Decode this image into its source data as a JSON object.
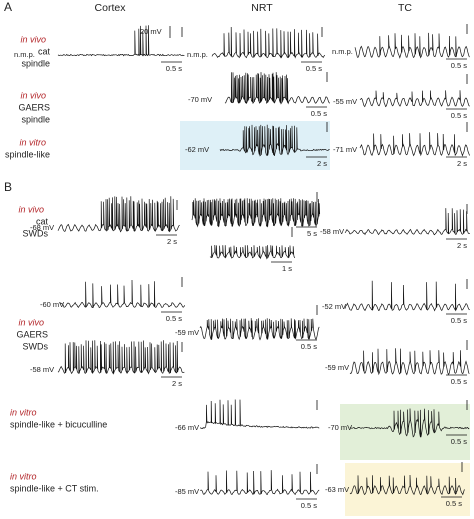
{
  "panels": [
    "A",
    "B"
  ],
  "columns": [
    "Cortex",
    "NRT",
    "TC"
  ],
  "conditions": [
    {
      "prep": "in vivo",
      "lines": [
        "cat",
        "spindle"
      ]
    },
    {
      "prep": "in vivo",
      "lines": [
        "GAERS",
        "spindle"
      ]
    },
    {
      "prep": "in vitro",
      "lines": [
        "spindle-like"
      ]
    },
    {
      "prep": "in vivo",
      "lines": [
        "cat",
        "SWDs"
      ]
    },
    {
      "prep": "in vivo",
      "lines": [
        "GAERS",
        "SWDs"
      ]
    },
    {
      "prep": "in vitro",
      "lines": [
        "spindle-like + bicuculline"
      ]
    },
    {
      "prep": "in vitro",
      "lines": [
        "spindle-like + CT stim."
      ]
    }
  ],
  "amplitude_scale": "20 mV",
  "traces": [
    {
      "potential": "n.m.p.",
      "time_scale": "0.5 s"
    },
    {
      "potential": "n.m.p.",
      "time_scale": "0.5 s"
    },
    {
      "potential": "n.m.p.",
      "time_scale": "0.5 s"
    },
    {
      "potential": "-70 mV",
      "time_scale": "0.5 s"
    },
    {
      "potential": "-55 mV",
      "time_scale": "0.5 s"
    },
    {
      "potential": "-62 mV",
      "time_scale": "2 s"
    },
    {
      "potential": "-71 mV",
      "time_scale": "2 s"
    },
    {
      "potential": "-68 mV",
      "time_scale": "2 s"
    },
    {
      "time_scale": "5 s"
    },
    {
      "time_scale": "1 s"
    },
    {
      "potential": "-58 mV",
      "time_scale": "2 s"
    },
    {
      "potential": "-60 mV",
      "time_scale": "0.5 s"
    },
    {
      "potential": "-52 mV",
      "time_scale": "0.5 s"
    },
    {
      "potential": "-58 mV",
      "time_scale": "2 s"
    },
    {
      "potential": "-59 mV",
      "time_scale": "0.5 s"
    },
    {
      "potential": "-59 mV",
      "time_scale": "0.5 s"
    },
    {
      "potential": "-66 mV"
    },
    {
      "potential": "-70 mV",
      "time_scale": "0.5 s"
    },
    {
      "potential": "-85 mV",
      "time_scale": "0.5 s"
    },
    {
      "potential": "-63 mV",
      "time_scale": "0.5 s"
    }
  ]
}
